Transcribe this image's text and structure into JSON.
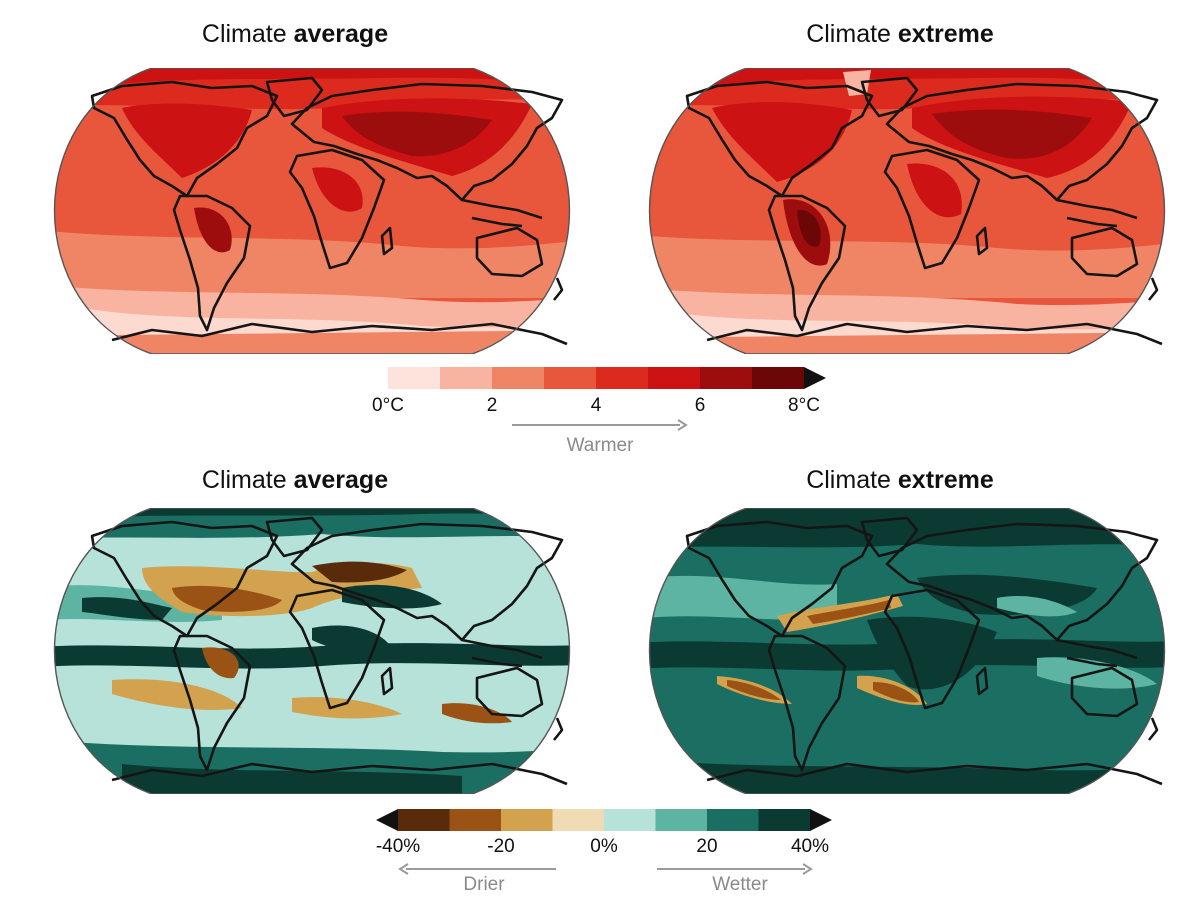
{
  "panels": {
    "temp_avg": {
      "title_prefix": "Climate ",
      "title_bold": "average"
    },
    "temp_ext": {
      "title_prefix": "Climate ",
      "title_bold": "extreme"
    },
    "prec_avg": {
      "title_prefix": "Climate ",
      "title_bold": "average"
    },
    "prec_ext": {
      "title_prefix": "Climate ",
      "title_bold": "extreme"
    }
  },
  "temp_colorbar": {
    "colors": [
      "#fde3dc",
      "#f8b4a0",
      "#f08566",
      "#e8563c",
      "#dc2a1e",
      "#cc1212",
      "#9e0d0d",
      "#6b0707"
    ],
    "ticks": [
      "0°C",
      "2",
      "4",
      "6",
      "8°C"
    ],
    "arrow_label": "Warmer"
  },
  "precip_colorbar": {
    "colors": [
      "#5a2b0a",
      "#9a5314",
      "#d2a24e",
      "#efdcb4",
      "#b6e2da",
      "#5db4a2",
      "#1b6e62",
      "#0b3a33"
    ],
    "ticks": [
      "-40%",
      "-20",
      "0%",
      "20",
      "40%"
    ],
    "left_label": "Drier",
    "right_label": "Wetter"
  }
}
